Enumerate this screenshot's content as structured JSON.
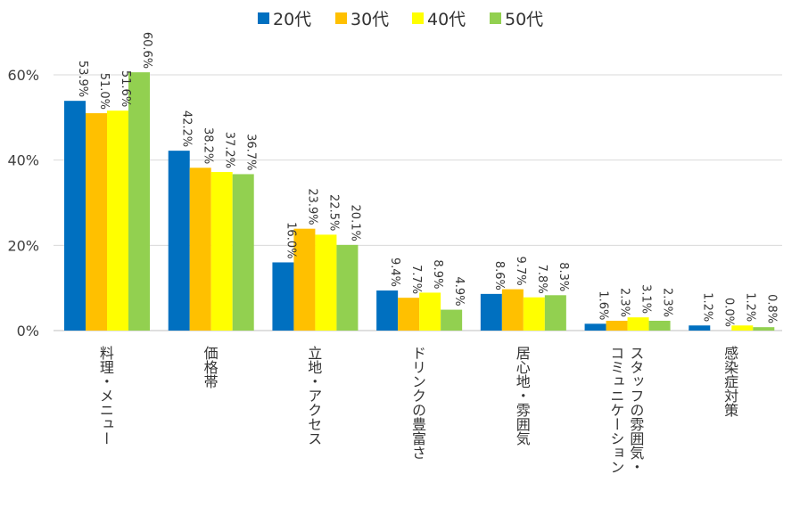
{
  "chart_data": {
    "type": "bar",
    "categories": [
      "料理・メニュー",
      "価格帯",
      "立地・アクセス",
      "ドリンクの豊富さ",
      "居心地・雰囲気",
      "スタッフの雰囲気・コミュニケーション",
      "感染症対策"
    ],
    "category_lines": [
      [
        "料理・メニュー"
      ],
      [
        "価格帯"
      ],
      [
        "立地・アクセス"
      ],
      [
        "ドリンクの豊富さ"
      ],
      [
        "居心地・雰囲気"
      ],
      [
        "スタッフの雰囲気・",
        "コミュニケーション"
      ],
      [
        "感染症対策"
      ]
    ],
    "series": [
      {
        "name": "20代",
        "color": "#0070c0",
        "values": [
          53.9,
          42.2,
          16.0,
          9.4,
          8.6,
          1.6,
          1.2
        ]
      },
      {
        "name": "30代",
        "color": "#ffc000",
        "values": [
          51.0,
          38.2,
          23.9,
          7.7,
          9.7,
          2.3,
          0.0
        ]
      },
      {
        "name": "40代",
        "color": "#ffff00",
        "values": [
          51.6,
          37.2,
          22.5,
          8.9,
          7.8,
          3.1,
          1.2
        ]
      },
      {
        "name": "50代",
        "color": "#92d050",
        "values": [
          60.6,
          36.7,
          20.1,
          4.9,
          8.3,
          2.3,
          0.8
        ]
      }
    ],
    "data_labels": [
      [
        "53.9%",
        "42.2%",
        "16.0%",
        "9.4%",
        "8.6%",
        "1.6%",
        "1.2%"
      ],
      [
        "51.0%",
        "38.2%",
        "23.9%",
        "7.7%",
        "9.7%",
        "2.3%",
        "0.0%"
      ],
      [
        "51.6%",
        "37.2%",
        "22.5%",
        "8.9%",
        "7.8%",
        "3.1%",
        "1.2%"
      ],
      [
        "60.6%",
        "36.7%",
        "20.1%",
        "4.9%",
        "8.3%",
        "2.3%",
        "0.8%"
      ]
    ],
    "yticks": [
      0,
      20,
      40,
      60
    ],
    "ytick_labels": [
      "0%",
      "20%",
      "40%",
      "60%"
    ],
    "ylim": [
      0,
      60
    ],
    "grid": true,
    "legend": "top"
  }
}
